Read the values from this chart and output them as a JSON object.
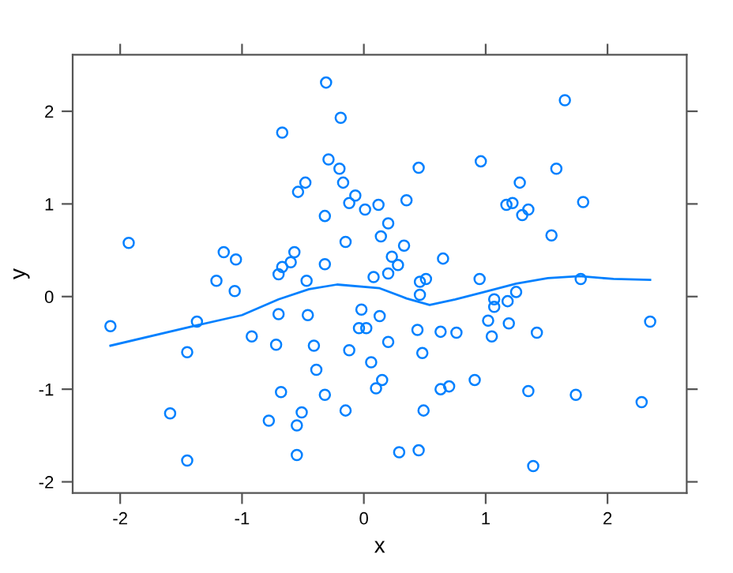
{
  "chart_data": {
    "type": "scatter",
    "xlabel": "x",
    "ylabel": "y",
    "xlim": [
      -2.39,
      2.65
    ],
    "ylim": [
      -2.12,
      2.61
    ],
    "xticks": [
      -2,
      -1,
      0,
      1,
      2
    ],
    "yticks": [
      -2,
      -1,
      0,
      1,
      2
    ],
    "grid": false,
    "legend": false,
    "marker": "circle",
    "series": [
      {
        "color": "#0080ff",
        "x": [
          -0.31,
          -0.19,
          -0.67,
          -0.29,
          -0.2,
          -0.48,
          -0.17,
          -0.54,
          -0.07,
          -0.12,
          0.12,
          0.01,
          -0.32,
          0.2,
          0.14,
          -1.93,
          -0.15,
          -1.15,
          -0.57,
          -1.05,
          0.23,
          -0.6,
          -0.67,
          -0.32,
          -0.7,
          0.2,
          0.08,
          -1.21,
          -0.47,
          1.65,
          0.45,
          0.96,
          1.58,
          1.28,
          0.35,
          1.17,
          1.22,
          1.8,
          1.3,
          1.35,
          1.54,
          0.33,
          0.28,
          0.65,
          0.51,
          0.46,
          0.95,
          1.78,
          -1.06,
          -2.08,
          -1.37,
          -0.7,
          -0.46,
          -0.02,
          0.13,
          -0.04,
          0.02,
          -0.92,
          -0.72,
          -0.41,
          -1.45,
          -0.12,
          0.2,
          0.06,
          -0.39,
          0.15,
          0.1,
          -0.68,
          -0.32,
          -1.59,
          -0.51,
          -0.15,
          -0.78,
          -0.55,
          -0.55,
          -1.45,
          0.46,
          1.07,
          1.07,
          1.18,
          1.25,
          1.02,
          1.19,
          2.35,
          0.44,
          0.63,
          0.76,
          1.05,
          1.42,
          0.48,
          0.91,
          0.63,
          0.7,
          1.35,
          1.74,
          2.28,
          0.49,
          0.29,
          0.45,
          1.39
        ],
        "values": [
          2.31,
          1.93,
          1.77,
          1.48,
          1.38,
          1.23,
          1.23,
          1.13,
          1.09,
          1.01,
          0.99,
          0.94,
          0.87,
          0.79,
          0.65,
          0.58,
          0.59,
          0.48,
          0.48,
          0.4,
          0.43,
          0.37,
          0.32,
          0.35,
          0.24,
          0.25,
          0.21,
          0.17,
          0.17,
          2.12,
          1.39,
          1.46,
          1.38,
          1.23,
          1.04,
          0.99,
          1.01,
          1.02,
          0.88,
          0.94,
          0.66,
          0.55,
          0.34,
          0.41,
          0.19,
          0.16,
          0.19,
          0.19,
          0.06,
          -0.32,
          -0.27,
          -0.19,
          -0.2,
          -0.14,
          -0.21,
          -0.34,
          -0.34,
          -0.43,
          -0.52,
          -0.53,
          -0.6,
          -0.58,
          -0.49,
          -0.71,
          -0.79,
          -0.9,
          -0.99,
          -1.03,
          -1.06,
          -1.26,
          -1.25,
          -1.23,
          -1.34,
          -1.39,
          -1.71,
          -1.77,
          0.02,
          -0.03,
          -0.11,
          -0.05,
          0.05,
          -0.26,
          -0.29,
          -0.27,
          -0.36,
          -0.38,
          -0.39,
          -0.43,
          -0.39,
          -0.61,
          -0.9,
          -1.0,
          -0.97,
          -1.02,
          -1.06,
          -1.14,
          -1.23,
          -1.68,
          -1.66,
          -1.83
        ]
      },
      {
        "type": "line",
        "color": "#0080ff",
        "marker": "none",
        "line_style": "solid",
        "x": [
          -2.08,
          -1.37,
          -1.0,
          -0.7,
          -0.45,
          -0.22,
          0.13,
          0.35,
          0.54,
          0.75,
          0.99,
          1.25,
          1.51,
          1.77,
          2.05,
          2.35
        ],
        "values": [
          -0.53,
          -0.31,
          -0.2,
          -0.03,
          0.08,
          0.13,
          0.09,
          -0.02,
          -0.09,
          -0.03,
          0.05,
          0.14,
          0.2,
          0.22,
          0.19,
          0.18
        ]
      }
    ]
  }
}
